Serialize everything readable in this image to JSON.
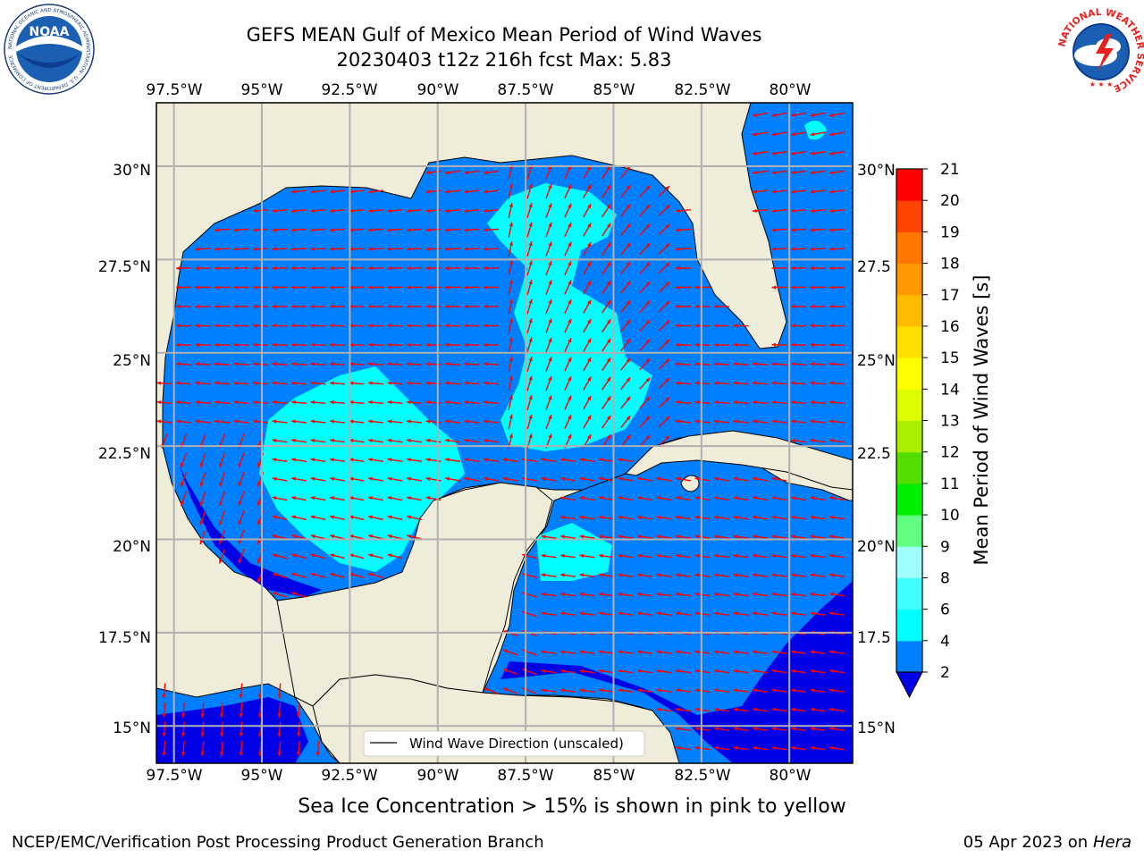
{
  "title": {
    "line1": "GEFS MEAN Gulf of Mexico Mean Period of Wind Waves",
    "line2": "20230403 t12z 216h fcst   Max: 5.83"
  },
  "map": {
    "lon_labels": [
      "97.5°W",
      "95°W",
      "92.5°W",
      "90°W",
      "87.5°W",
      "85°W",
      "82.5°W",
      "80°W"
    ],
    "lat_labels_left": [
      "30°N",
      "27.5°N",
      "25°N",
      "22.5°N",
      "20°N",
      "17.5°N",
      "15°N"
    ],
    "lat_labels_right": [
      "30°N",
      "27.5",
      "25°N",
      "22.5",
      "20°N",
      "17.5",
      "15°N"
    ],
    "lon_range": [
      -98,
      -78.2
    ],
    "lat_range": [
      14.0,
      31.7
    ],
    "legend_label": "Wind Wave Direction (unscaled)",
    "colors": {
      "land": "#efedda",
      "water_2_4": "#0080ff",
      "water_lt2": "#0000e6",
      "water_4_6": "#00ffff",
      "arrows": "#ff0000"
    }
  },
  "colorbar": {
    "label": "Mean Period of Wind Waves [s]",
    "ticks": [
      "21",
      "20",
      "19",
      "18",
      "17",
      "16",
      "15",
      "14",
      "13",
      "12",
      "11",
      "10",
      "9",
      "8",
      "6",
      "4",
      "2"
    ],
    "bands": [
      "#0080ff",
      "#00ffff",
      "#40ffff",
      "#a0ffff",
      "#60ff80",
      "#00ee00",
      "#55dd00",
      "#aaee00",
      "#ddff00",
      "#ffff00",
      "#ffe000",
      "#ffbb00",
      "#ff9900",
      "#ff7700",
      "#ff4400",
      "#ff0000"
    ],
    "extend_color": "#0000e6"
  },
  "caption": "Sea Ice Concentration > 15% is shown in pink to yellow",
  "footer": {
    "left": "NCEP/EMC/Verification Post Processing Product Generation Branch",
    "right_prefix": "05 Apr 2023 on ",
    "right_machine": "Hera"
  },
  "logos": {
    "noaa": "NOAA",
    "noaa_ring": "NATIONAL OCEANIC AND ATMOSPHERIC ADMINISTRATION · U.S. DEPARTMENT OF COMMERCE",
    "nws_ring": "NATIONAL WEATHER SERVICE"
  }
}
